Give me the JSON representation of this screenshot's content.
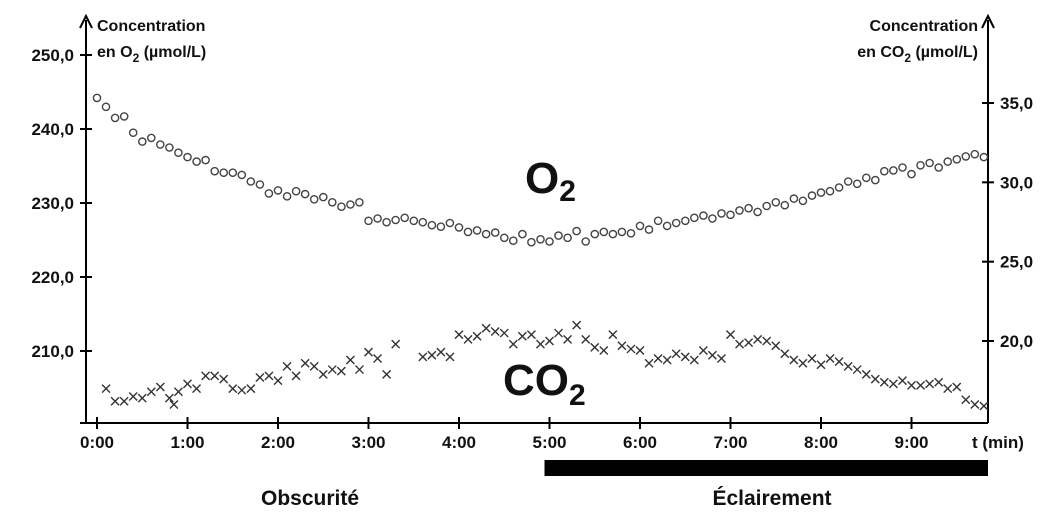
{
  "chart_data": {
    "type": "scatter",
    "x_unit": "min",
    "x_axis_label": "t (min)",
    "x_ticks": [
      "0:00",
      "1:00",
      "2:00",
      "3:00",
      "4:00",
      "5:00",
      "6:00",
      "7:00",
      "8:00",
      "9:00"
    ],
    "x_range": [
      0,
      9.8
    ],
    "left_axis": {
      "label_line1": "Concentration",
      "label_line2_prefix": "en O",
      "label_line2_sub": "2",
      "label_line2_suffix": " (µmol/L)",
      "range": [
        202,
        250
      ],
      "ticks": [
        "210,0",
        "220,0",
        "230,0",
        "240,0",
        "250,0"
      ],
      "tick_values": [
        210,
        220,
        230,
        240,
        250
      ]
    },
    "right_axis": {
      "label_line1": "Concentration",
      "label_line2_prefix": "en CO",
      "label_line2_sub": "2",
      "label_line2_suffix": " (µmol/L)",
      "range": [
        15,
        38
      ],
      "ticks": [
        "20,0",
        "25,0",
        "30,0",
        "35,0"
      ],
      "tick_values": [
        20,
        25,
        30,
        35
      ]
    },
    "series_labels": {
      "o2_main": "O",
      "o2_sub": "2",
      "co2_main": "CO",
      "co2_sub": "2"
    },
    "phases": {
      "dark_label": "Obscurité",
      "light_label": "Éclairement",
      "light_start": 5.0,
      "light_end": 9.8
    },
    "series": [
      {
        "name": "O2",
        "axis": "left",
        "marker": "circle",
        "x": [
          0.0,
          0.1,
          0.2,
          0.3,
          0.4,
          0.5,
          0.6,
          0.7,
          0.8,
          0.9,
          1.0,
          1.1,
          1.2,
          1.3,
          1.4,
          1.5,
          1.6,
          1.7,
          1.8,
          1.9,
          2.0,
          2.1,
          2.2,
          2.3,
          2.4,
          2.5,
          2.6,
          2.7,
          2.8,
          2.9,
          3.0,
          3.1,
          3.2,
          3.3,
          3.4,
          3.5,
          3.6,
          3.7,
          3.8,
          3.9,
          4.0,
          4.1,
          4.2,
          4.3,
          4.4,
          4.5,
          4.6,
          4.7,
          4.8,
          4.9,
          5.0,
          5.1,
          5.2,
          5.3,
          5.4,
          5.5,
          5.6,
          5.7,
          5.8,
          5.9,
          6.0,
          6.1,
          6.2,
          6.3,
          6.4,
          6.5,
          6.6,
          6.7,
          6.8,
          6.9,
          7.0,
          7.1,
          7.2,
          7.3,
          7.4,
          7.5,
          7.6,
          7.7,
          7.8,
          7.9,
          8.0,
          8.1,
          8.2,
          8.3,
          8.4,
          8.5,
          8.6,
          8.7,
          8.8,
          8.9,
          9.0,
          9.1,
          9.2,
          9.3,
          9.4,
          9.5,
          9.6,
          9.7,
          9.8
        ],
        "values": [
          244.2,
          243.0,
          241.5,
          241.7,
          239.5,
          238.3,
          238.8,
          237.9,
          237.5,
          236.8,
          236.2,
          235.6,
          235.8,
          234.3,
          234.1,
          234.1,
          233.8,
          232.9,
          232.5,
          231.3,
          231.7,
          230.9,
          231.6,
          231.2,
          230.5,
          230.8,
          230.1,
          229.5,
          229.8,
          230.1,
          227.6,
          227.9,
          227.4,
          227.7,
          228.0,
          227.6,
          227.4,
          227.0,
          226.8,
          227.3,
          226.7,
          226.1,
          226.3,
          225.8,
          226.0,
          225.3,
          224.9,
          225.8,
          224.7,
          225.1,
          224.8,
          225.6,
          225.3,
          226.2,
          224.8,
          225.8,
          226.1,
          225.8,
          226.1,
          225.9,
          226.9,
          226.4,
          227.6,
          226.9,
          227.3,
          227.6,
          228.0,
          228.3,
          227.9,
          228.6,
          228.4,
          229.0,
          229.3,
          228.8,
          229.6,
          230.1,
          229.7,
          230.6,
          230.3,
          231.0,
          231.4,
          231.6,
          232.1,
          232.9,
          232.6,
          233.4,
          233.1,
          234.3,
          234.4,
          234.8,
          233.9,
          235.1,
          235.4,
          234.8,
          235.6,
          235.9,
          236.3,
          236.6,
          236.2
        ]
      },
      {
        "name": "CO2",
        "axis": "right",
        "marker": "cross",
        "x": [
          0.1,
          0.2,
          0.3,
          0.4,
          0.5,
          0.6,
          0.7,
          0.8,
          0.85,
          0.9,
          1.0,
          1.1,
          1.2,
          1.3,
          1.4,
          1.5,
          1.6,
          1.7,
          1.8,
          1.9,
          2.0,
          2.1,
          2.2,
          2.3,
          2.4,
          2.5,
          2.6,
          2.7,
          2.8,
          2.9,
          3.0,
          3.1,
          3.2,
          3.3,
          3.6,
          3.7,
          3.8,
          3.9,
          4.0,
          4.1,
          4.2,
          4.3,
          4.4,
          4.5,
          4.6,
          4.7,
          4.8,
          4.9,
          5.0,
          5.1,
          5.2,
          5.3,
          5.4,
          5.5,
          5.6,
          5.7,
          5.8,
          5.9,
          6.0,
          6.1,
          6.2,
          6.3,
          6.4,
          6.5,
          6.6,
          6.7,
          6.8,
          6.9,
          7.0,
          7.1,
          7.2,
          7.3,
          7.4,
          7.5,
          7.6,
          7.7,
          7.8,
          7.9,
          8.0,
          8.1,
          8.2,
          8.3,
          8.4,
          8.5,
          8.6,
          8.7,
          8.8,
          8.9,
          9.0,
          9.1,
          9.2,
          9.3,
          9.4,
          9.5,
          9.6,
          9.7,
          9.8
        ],
        "values": [
          17.0,
          16.2,
          16.2,
          16.5,
          16.4,
          16.8,
          17.1,
          16.4,
          16.0,
          16.8,
          17.3,
          17.0,
          17.8,
          17.8,
          17.6,
          17.0,
          16.9,
          17.0,
          17.7,
          17.8,
          17.5,
          18.4,
          17.8,
          18.6,
          18.4,
          17.9,
          18.2,
          18.1,
          18.8,
          18.2,
          19.3,
          18.9,
          17.9,
          19.8,
          19.0,
          19.1,
          19.3,
          19.0,
          20.4,
          20.1,
          20.3,
          20.8,
          20.6,
          20.5,
          19.8,
          20.3,
          20.4,
          19.8,
          20.0,
          20.5,
          20.1,
          21.0,
          20.1,
          19.6,
          19.4,
          20.4,
          19.7,
          19.5,
          19.4,
          18.6,
          18.9,
          18.8,
          19.2,
          19.0,
          18.8,
          19.4,
          19.1,
          18.9,
          20.4,
          19.8,
          19.9,
          20.1,
          20.0,
          19.7,
          19.2,
          18.8,
          18.6,
          18.9,
          18.5,
          18.9,
          18.7,
          18.4,
          18.2,
          17.9,
          17.6,
          17.4,
          17.3,
          17.5,
          17.2,
          17.2,
          17.3,
          17.4,
          17.0,
          17.1,
          16.3,
          16.0,
          15.9
        ]
      }
    ]
  }
}
